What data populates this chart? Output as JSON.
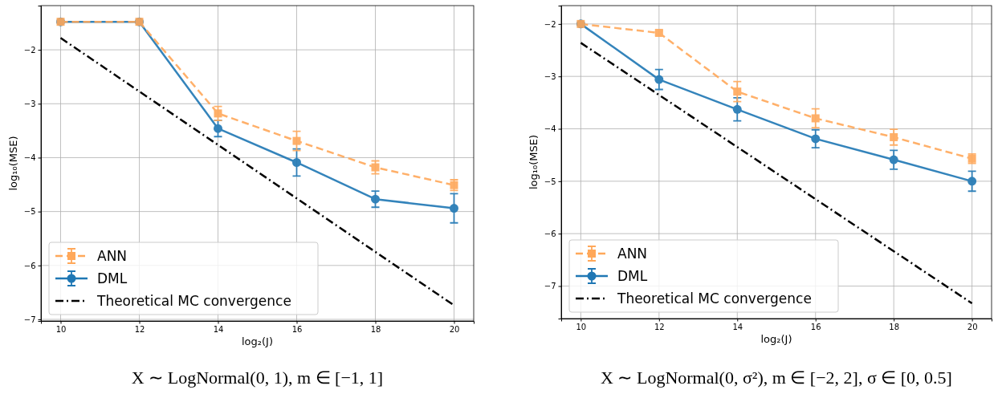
{
  "chart_data": [
    {
      "type": "line",
      "title": "X ∼ LogNormal(0, 1), m ∈ [−1, 1]",
      "xlabel": "log₂(J)",
      "ylabel": "log₁₀(MSE)",
      "xlim": [
        9.5,
        20.5
      ],
      "xticks": [
        10,
        12,
        14,
        16,
        18,
        20
      ],
      "ylim": [
        -7.03,
        -1.18
      ],
      "yticks": [
        {
          "value": -7,
          "label": "−7"
        },
        {
          "value": -6,
          "label": "−6"
        },
        {
          "value": -5,
          "label": "−5"
        },
        {
          "value": -4,
          "label": "−4"
        },
        {
          "value": -3,
          "label": "−3"
        },
        {
          "value": -2,
          "label": "−2"
        }
      ],
      "grid": true,
      "legend": "bottom left",
      "series": [
        {
          "name": "ANN",
          "color": "#ffa85a",
          "x": [
            10,
            12,
            14,
            16,
            18,
            20
          ],
          "values": [
            -1.48,
            -1.48,
            -3.18,
            -3.69,
            -4.18,
            -4.51
          ],
          "errors": [
            null,
            null,
            0.13,
            0.18,
            0.12,
            0.1
          ],
          "marker": "square",
          "line_style": "dashed"
        },
        {
          "name": "DML",
          "color": "#1f77b4",
          "x": [
            10,
            12,
            14,
            16,
            18,
            20
          ],
          "values": [
            -1.48,
            -1.48,
            -3.46,
            -4.09,
            -4.77,
            -4.94
          ],
          "errors": [
            null,
            null,
            0.15,
            0.25,
            0.15,
            0.27
          ],
          "marker": "circle",
          "line_style": "solid"
        },
        {
          "name": "Theoretical MC convergence",
          "color": "#000000",
          "x": [
            10,
            20
          ],
          "values": [
            -1.78,
            -6.74
          ],
          "marker": "none",
          "line_style": "dashdot"
        }
      ]
    },
    {
      "type": "line",
      "title": "X ∼ LogNormal(0, σ²), m ∈ [−2, 2], σ ∈ [0, 0.5]",
      "xlabel": "log₂(J)",
      "ylabel": "log₁₀(MSE)",
      "xlim": [
        9.5,
        20.5
      ],
      "xticks": [
        10,
        12,
        14,
        16,
        18,
        20
      ],
      "ylim": [
        -7.62,
        -1.65
      ],
      "yticks": [
        {
          "value": -7,
          "label": "−7"
        },
        {
          "value": -6,
          "label": "−6"
        },
        {
          "value": -5,
          "label": "−5"
        },
        {
          "value": -4,
          "label": "−4"
        },
        {
          "value": -3,
          "label": "−3"
        },
        {
          "value": -2,
          "label": "−2"
        }
      ],
      "grid": true,
      "legend": "bottom left",
      "series": [
        {
          "name": "ANN",
          "color": "#ffa85a",
          "x": [
            10,
            12,
            14,
            16,
            18,
            20
          ],
          "values": [
            -2.0,
            -2.17,
            -3.29,
            -3.8,
            -4.16,
            -4.57
          ],
          "errors": [
            null,
            0.04,
            0.19,
            0.18,
            0.15,
            0.09
          ],
          "marker": "square",
          "line_style": "dashed"
        },
        {
          "name": "DML",
          "color": "#1f77b4",
          "x": [
            10,
            12,
            14,
            16,
            18,
            20
          ],
          "values": [
            -2.0,
            -3.06,
            -3.63,
            -4.19,
            -4.59,
            -5.0
          ],
          "errors": [
            null,
            0.19,
            0.22,
            0.17,
            0.18,
            0.19
          ],
          "marker": "circle",
          "line_style": "solid"
        },
        {
          "name": "Theoretical MC convergence",
          "color": "#000000",
          "x": [
            10,
            20
          ],
          "values": [
            -2.36,
            -7.33
          ],
          "marker": "none",
          "line_style": "dashdot"
        }
      ]
    }
  ]
}
